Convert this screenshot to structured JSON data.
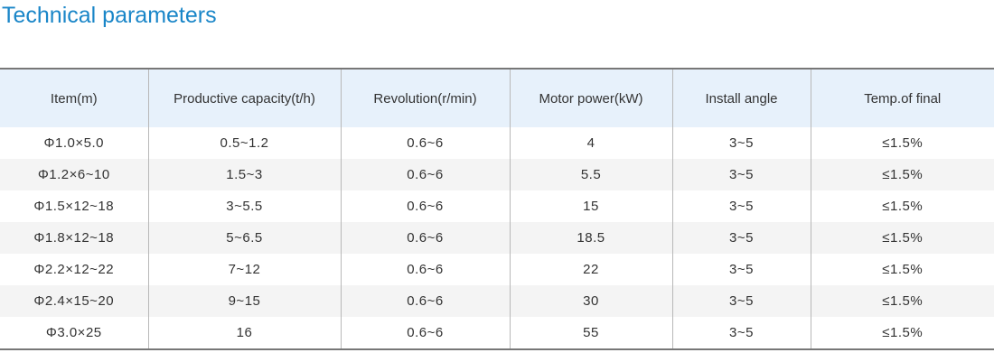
{
  "title": "Technical parameters",
  "table": {
    "headers": [
      "Item(m)",
      "Productive capacity(t/h)",
      "Revolution(r/min)",
      "Motor power(kW)",
      "Install angle",
      "Temp.of final"
    ],
    "rows": [
      [
        "Φ1.0×5.0",
        "0.5~1.2",
        "0.6~6",
        "4",
        "3~5",
        "≤1.5%"
      ],
      [
        "Φ1.2×6~10",
        "1.5~3",
        "0.6~6",
        "5.5",
        "3~5",
        "≤1.5%"
      ],
      [
        "Φ1.5×12~18",
        "3~5.5",
        "0.6~6",
        "15",
        "3~5",
        "≤1.5%"
      ],
      [
        "Φ1.8×12~18",
        "5~6.5",
        "0.6~6",
        "18.5",
        "3~5",
        "≤1.5%"
      ],
      [
        "Φ2.2×12~22",
        "7~12",
        "0.6~6",
        "22",
        "3~5",
        "≤1.5%"
      ],
      [
        "Φ2.4×15~20",
        "9~15",
        "0.6~6",
        "30",
        "3~5",
        "≤1.5%"
      ],
      [
        "Φ3.0×25",
        "16",
        "0.6~6",
        "55",
        "3~5",
        "≤1.5%"
      ]
    ]
  },
  "colors": {
    "title": "#1a86c8",
    "header_background": "#e7f1fb",
    "stripe_background": "#f4f4f4",
    "rule": "#777777"
  }
}
